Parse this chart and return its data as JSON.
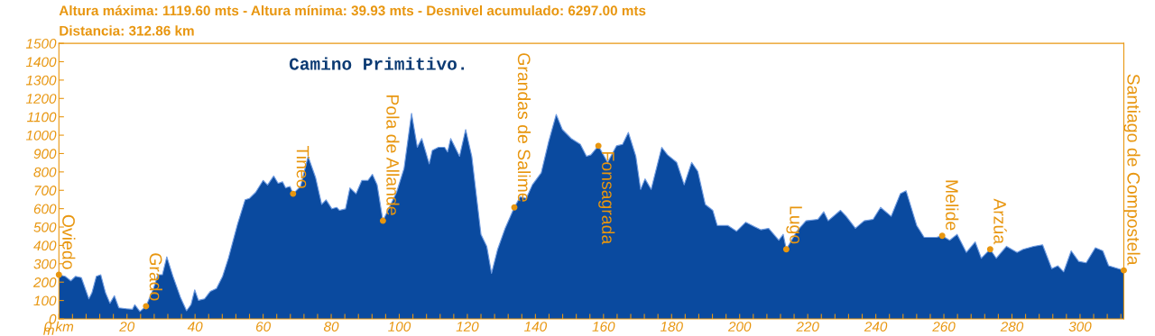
{
  "chart_data": {
    "type": "area",
    "title": "Altura máxima: 1119.60 mts - Altura mínima: 39.93 mts - Desnivel acumulado: 6297.00 mts",
    "subtitle": "Distancia: 312.86 km",
    "ylabel": "m",
    "x": [
      0,
      1.8,
      3.5,
      4.9,
      6.6,
      8.8,
      9.7,
      11.0,
      12.3,
      13.7,
      15.0,
      16.3,
      17.6,
      19.8,
      21.6,
      22.3,
      23.8,
      25.6,
      27.8,
      29.1,
      30.4,
      31.7,
      33.5,
      35.7,
      37.5,
      38.8,
      39.9,
      41.0,
      42.8,
      44.5,
      46.3,
      48.1,
      49.8,
      52.5,
      54.7,
      56.0,
      57.8,
      60.0,
      61.3,
      63.1,
      64.4,
      65.7,
      66.6,
      67.9,
      68.8,
      71.0,
      73.2,
      75.4,
      77.2,
      78.5,
      80.2,
      81.6,
      82.4,
      84.2,
      85.5,
      87.3,
      89.0,
      90.8,
      92.1,
      93.5,
      95.2,
      99.2,
      101.4,
      103.6,
      105.3,
      106.6,
      108.8,
      109.7,
      111.5,
      113.3,
      114.2,
      115.1,
      117.7,
      119.5,
      121.3,
      124.0,
      125.7,
      127.1,
      128.9,
      131.1,
      133.8,
      135.5,
      137.3,
      139.1,
      141.7,
      143.9,
      146.1,
      147.9,
      150.5,
      153.2,
      155.0,
      156.3,
      158.5,
      161.2,
      163.8,
      165.6,
      167.3,
      169.5,
      170.9,
      172.2,
      174.0,
      177.1,
      178.8,
      181.5,
      183.7,
      185.9,
      187.7,
      189.9,
      192.1,
      193.4,
      196.5,
      199.1,
      201.8,
      204.4,
      206.2,
      208.5,
      211.5,
      212.8,
      213.7,
      216.8,
      219.5,
      223.0,
      224.7,
      226.0,
      229.6,
      231.3,
      234.0,
      236.6,
      239.2,
      241.4,
      244.5,
      247.2,
      248.9,
      252.0,
      254.2,
      257.8,
      259.5,
      261.7,
      263.9,
      266.6,
      269.2,
      271.0,
      273.6,
      275.4,
      278.4,
      281.5,
      283.3,
      286.4,
      289.0,
      291.7,
      293.5,
      295.2,
      297.4,
      299.6,
      301.8,
      304.5,
      306.7,
      308.4,
      312.86
    ],
    "series": [
      {
        "color": "#0a4a9f",
        "values": [
          240,
          232,
          207,
          232,
          224,
          109,
          142,
          232,
          240,
          142,
          85,
          126,
          60,
          55,
          52,
          77,
          40,
          69,
          166,
          240,
          240,
          338,
          232,
          118,
          44,
          77,
          158,
          101,
          109,
          150,
          166,
          232,
          330,
          517,
          648,
          656,
          689,
          754,
          729,
          778,
          738,
          746,
          713,
          721,
          681,
          721,
          885,
          770,
          623,
          648,
          599,
          607,
          591,
          599,
          713,
          681,
          754,
          754,
          787,
          729,
          534,
          689,
          819,
          1119,
          934,
          982,
          844,
          917,
          934,
          934,
          909,
          982,
          885,
          1031,
          885,
          460,
          395,
          248,
          379,
          493,
          607,
          664,
          656,
          730,
          795,
          966,
          1113,
          1031,
          982,
          950,
          885,
          893,
          942,
          852,
          942,
          950,
          1015,
          885,
          705,
          762,
          705,
          934,
          893,
          852,
          730,
          852,
          803,
          623,
          591,
          509,
          509,
          477,
          526,
          501,
          485,
          493,
          428,
          460,
          379,
          477,
          534,
          542,
          583,
          534,
          591,
          558,
          493,
          534,
          542,
          607,
          558,
          681,
          697,
          509,
          444,
          444,
          452,
          428,
          460,
          362,
          419,
          330,
          379,
          330,
          395,
          362,
          379,
          395,
          403,
          273,
          289,
          256,
          370,
          313,
          305,
          387,
          370,
          289,
          264
        ]
      }
    ],
    "xlim": [
      0,
      312.86
    ],
    "ylim": [
      0,
      1500
    ],
    "xticks": [
      {
        "value": 0,
        "label": "0 km"
      },
      {
        "value": 4,
        "label": null
      },
      {
        "value": 8,
        "label": null
      },
      {
        "value": 12,
        "label": null
      },
      {
        "value": 16,
        "label": null
      },
      20,
      {
        "value": 24,
        "label": null
      },
      {
        "value": 28,
        "label": null
      },
      {
        "value": 32,
        "label": null
      },
      {
        "value": 36,
        "label": null
      },
      40,
      {
        "value": 44,
        "label": null
      },
      {
        "value": 48,
        "label": null
      },
      {
        "value": 52,
        "label": null
      },
      {
        "value": 56,
        "label": null
      },
      60,
      {
        "value": 64,
        "label": null
      },
      {
        "value": 68,
        "label": null
      },
      {
        "value": 72,
        "label": null
      },
      {
        "value": 76,
        "label": null
      },
      80,
      {
        "value": 84,
        "label": null
      },
      {
        "value": 88,
        "label": null
      },
      {
        "value": 92,
        "label": null
      },
      {
        "value": 96,
        "label": null
      },
      100,
      {
        "value": 104,
        "label": null
      },
      {
        "value": 108,
        "label": null
      },
      {
        "value": 112,
        "label": null
      },
      {
        "value": 116,
        "label": null
      },
      120,
      {
        "value": 124,
        "label": null
      },
      {
        "value": 128,
        "label": null
      },
      {
        "value": 132,
        "label": null
      },
      {
        "value": 136,
        "label": null
      },
      140,
      {
        "value": 144,
        "label": null
      },
      {
        "value": 148,
        "label": null
      },
      {
        "value": 152,
        "label": null
      },
      {
        "value": 156,
        "label": null
      },
      160,
      {
        "value": 164,
        "label": null
      },
      {
        "value": 168,
        "label": null
      },
      {
        "value": 172,
        "label": null
      },
      {
        "value": 176,
        "label": null
      },
      180,
      {
        "value": 184,
        "label": null
      },
      {
        "value": 188,
        "label": null
      },
      {
        "value": 192,
        "label": null
      },
      {
        "value": 196,
        "label": null
      },
      200,
      {
        "value": 204,
        "label": null
      },
      {
        "value": 208,
        "label": null
      },
      {
        "value": 212,
        "label": null
      },
      {
        "value": 216,
        "label": null
      },
      220,
      {
        "value": 224,
        "label": null
      },
      {
        "value": 228,
        "label": null
      },
      {
        "value": 232,
        "label": null
      },
      {
        "value": 236,
        "label": null
      },
      240,
      {
        "value": 244,
        "label": null
      },
      {
        "value": 248,
        "label": null
      },
      {
        "value": 252,
        "label": null
      },
      {
        "value": 256,
        "label": null
      },
      260,
      {
        "value": 264,
        "label": null
      },
      {
        "value": 268,
        "label": null
      },
      {
        "value": 272,
        "label": null
      },
      {
        "value": 276,
        "label": null
      },
      280,
      {
        "value": 284,
        "label": null
      },
      {
        "value": 288,
        "label": null
      },
      {
        "value": 292,
        "label": null
      },
      {
        "value": 296,
        "label": null
      },
      300,
      {
        "value": 304,
        "label": null
      },
      {
        "value": 308,
        "label": null
      },
      {
        "value": 312,
        "label": null
      }
    ],
    "yticks": [
      0,
      100,
      200,
      300,
      400,
      500,
      600,
      700,
      800,
      900,
      1000,
      1100,
      1200,
      1300,
      1400,
      1500
    ],
    "annotations": [
      {
        "text": "Camino Primitivo."
      },
      {
        "text": "Oviedo",
        "x": 0,
        "y": 240
      },
      {
        "text": "Grado",
        "x": 25.6,
        "y": 69
      },
      {
        "text": "Tineo",
        "x": 68.8,
        "y": 681
      },
      {
        "text": "Pola de Allande",
        "x": 95.2,
        "y": 534
      },
      {
        "text": "Grandas de Salime",
        "x": 133.8,
        "y": 607
      },
      {
        "text": "Fonsagrada",
        "x": 158.5,
        "y": 942
      },
      {
        "text": "Lugo",
        "x": 213.7,
        "y": 379
      },
      {
        "text": "Melide",
        "x": 259.5,
        "y": 452
      },
      {
        "text": "Arzúa",
        "x": 273.6,
        "y": 379
      },
      {
        "text": "Santiago de Compostela",
        "x": 312.86,
        "y": 264
      }
    ],
    "grid": false,
    "legend": false
  }
}
